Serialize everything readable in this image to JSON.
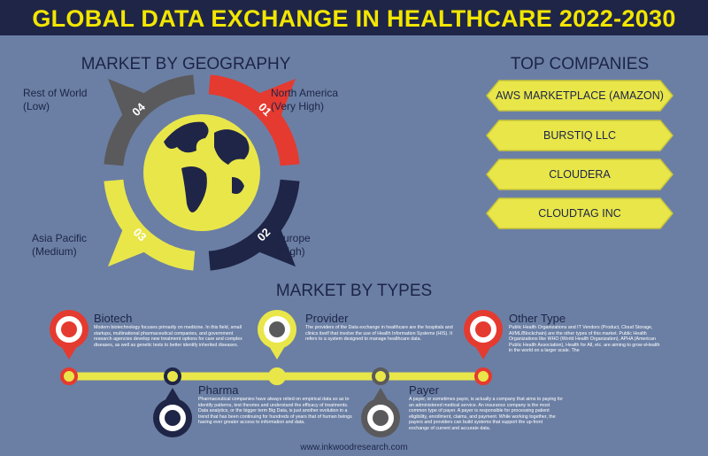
{
  "header": {
    "title": "GLOBAL DATA EXCHANGE IN HEALTHCARE 2022-2030"
  },
  "geography": {
    "title": "MARKET BY GEOGRAPHY",
    "regions": [
      {
        "number": "01",
        "name": "North America",
        "level": "(Very High)"
      },
      {
        "number": "02",
        "name": "Europe",
        "level": "(High)"
      },
      {
        "number": "03",
        "name": "Asia Pacific",
        "level": "(Medium)"
      },
      {
        "number": "04",
        "name": "Rest of World",
        "level": "(Low)"
      }
    ]
  },
  "companies": {
    "title": "TOP COMPANIES",
    "items": [
      "AWS MARKETPLACE (AMAZON)",
      "BURSTIQ LLC",
      "CLOUDERA",
      "CLOUDTAG INC"
    ]
  },
  "types": {
    "title": "MARKET BY TYPES",
    "items": [
      {
        "name": "Biotech",
        "description": "Modern biotechnology focuses primarily on medicine. In this field, small startups, multinational pharmaceutical companies, and government research agencies develop new treatment options for care and complex diseases, as well as genetic tests to better identify inherited diseases."
      },
      {
        "name": "Pharma",
        "description": "Pharmaceutical companies have always relied on empirical data so as to identify patterns, test theories and understand the efficacy of treatments. Data analytics, or the bigger term Big Data, is just another evolution in a trend that has been continuing for hundreds of years that of human beings having ever greater access to information and data."
      },
      {
        "name": "Provider",
        "description": "The providers of the Data exchange in healthcare are the hospitals and clinics itself that involve the use of Health Information Systems (HIS). It refers to a system designed to manage healthcare data."
      },
      {
        "name": "Payer",
        "description": "A payer, or sometimes payor, is actually a company that aims to paying for an administered medical service. An insurance company is the most common type of payer. A payer is responsible for processing patient eligibility, enrollment, claims, and payment. While working together, the payers and providers can build systems that support the up-front exchange of current and accurate data."
      },
      {
        "name": "Other Type",
        "description": "Public Health Organizations and IT Vendors (Product, Cloud Storage, AI/ML/Blockchain) are the other types of this market. Public Health Organizations like WHO (World Health Organization), APHA (American Public Health Association), Health for All, etc. are aiming to grow eHealth in the world on a larger scale. The"
      }
    ]
  },
  "footer": {
    "website": "www.inkwoodresearch.com"
  }
}
